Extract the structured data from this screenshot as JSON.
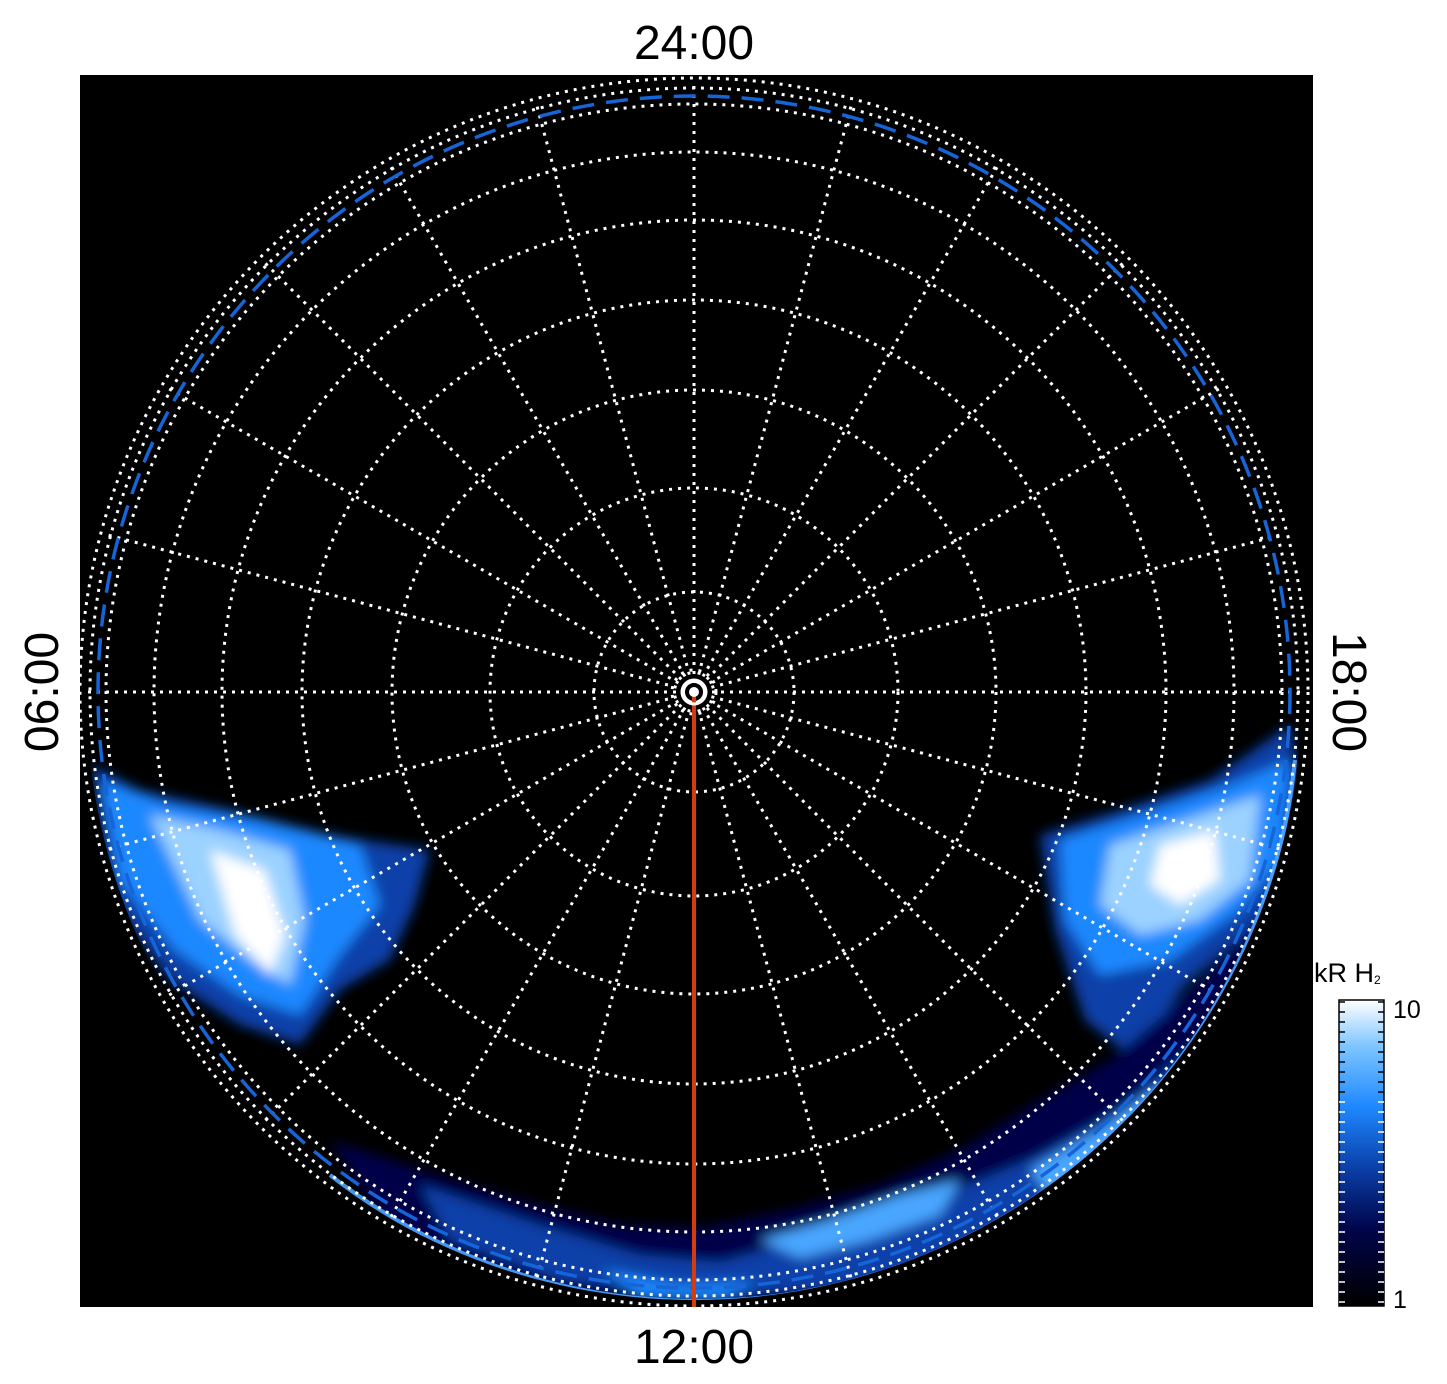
{
  "labels": {
    "top": "24:00",
    "bottom": "12:00",
    "left": "06:00",
    "right": "18:00"
  },
  "colorbar": {
    "title_main": "kR H",
    "title_sub": "2",
    "max_label": "10",
    "min_label": "1",
    "scale": "log",
    "stops": [
      "#000000",
      "#00044a",
      "#0a3fa8",
      "#1e88ff",
      "#7ec6ff",
      "#ffffff"
    ]
  },
  "map": {
    "projection": "polar",
    "background": "#000000",
    "grid_color": "#ffffff",
    "grid_style": "dotted",
    "reference_oval_color": "#1565d8",
    "reference_oval_style": "dashed",
    "noon_line_color": "#d23c10",
    "pole_marker": "circle"
  }
}
